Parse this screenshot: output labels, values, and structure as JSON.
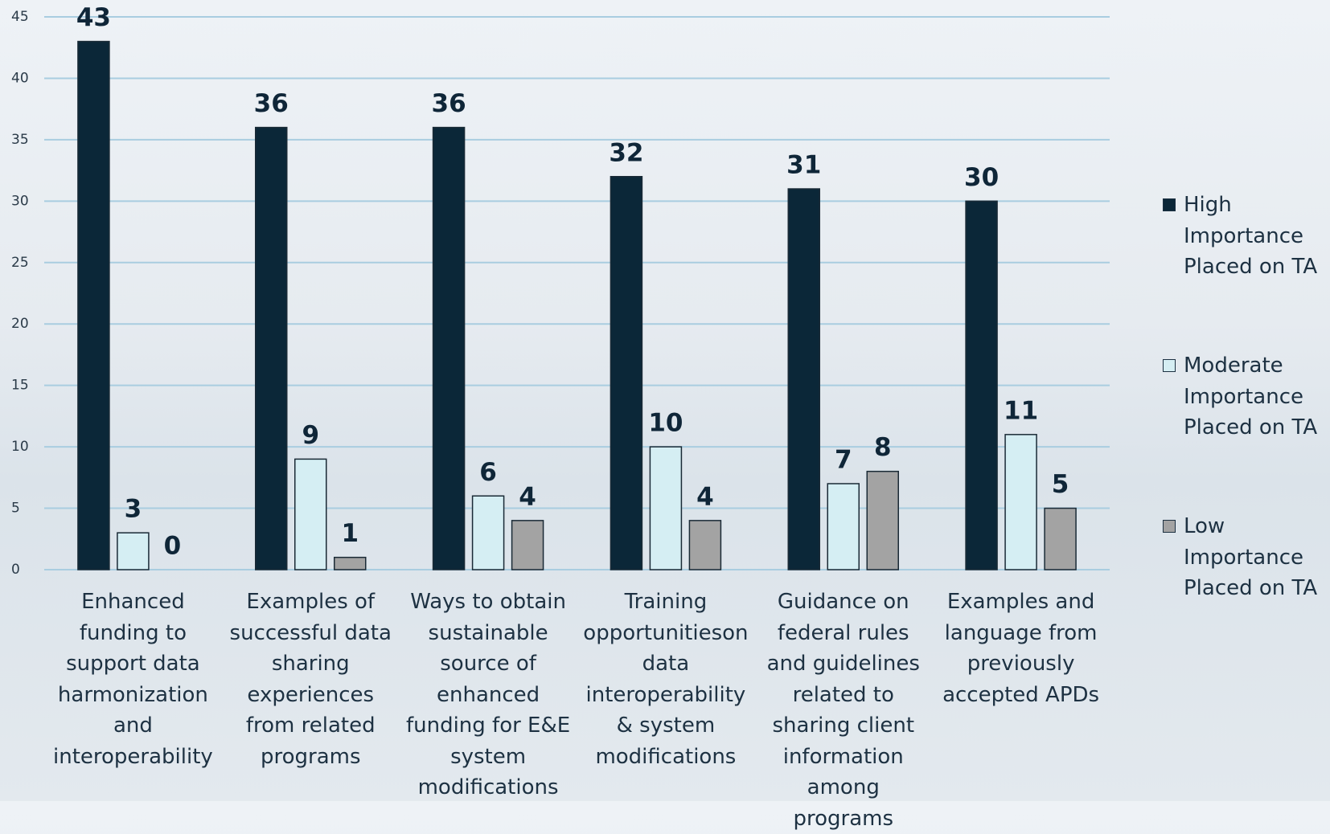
{
  "chart_data": {
    "type": "bar",
    "categories": [
      "Enhanced funding to support data harmonization and interoperability",
      "Examples of successful data sharing experiences from related programs",
      "Ways to obtain sustainable source of enhanced funding for E&E system modifications",
      "Training opportunitieson data interoperability & system modifications",
      "Guidance on federal rules and guidelines related to sharing client information among programs",
      "Examples and language from previously accepted APDs"
    ],
    "series": [
      {
        "name": "High Importance Placed on TA",
        "color": "#0b2738",
        "values": [
          43,
          36,
          36,
          32,
          31,
          30
        ]
      },
      {
        "name": "Moderate Importance Placed on TA",
        "color": "#d5eef3",
        "values": [
          3,
          9,
          6,
          10,
          7,
          11
        ]
      },
      {
        "name": "Low Importance Placed on TA",
        "color": "#a3a3a3",
        "values": [
          0,
          1,
          4,
          4,
          8,
          5
        ]
      }
    ],
    "ylim": [
      0,
      45
    ],
    "yticks": [
      0,
      5,
      10,
      15,
      20,
      25,
      30,
      35,
      40,
      45
    ],
    "grid": true,
    "legend": "right"
  }
}
